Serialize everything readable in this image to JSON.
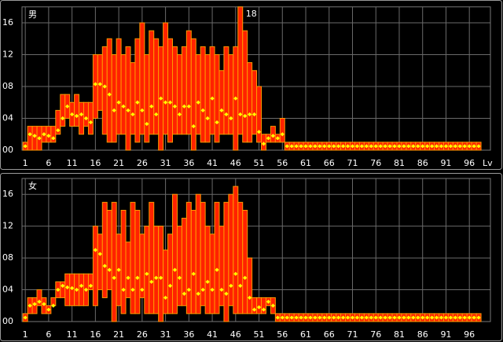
{
  "chart_data": [
    {
      "type": "range",
      "title": "男",
      "xlabel": "Lv",
      "annotation": {
        "x": 47,
        "label": "18"
      },
      "x": [
        1,
        2,
        3,
        4,
        5,
        6,
        7,
        8,
        9,
        10,
        11,
        12,
        13,
        14,
        15,
        16,
        17,
        18,
        19,
        20,
        21,
        22,
        23,
        24,
        25,
        26,
        27,
        28,
        29,
        30,
        31,
        32,
        33,
        34,
        35,
        36,
        37,
        38,
        39,
        40,
        41,
        42,
        43,
        44,
        45,
        46,
        47,
        48,
        49,
        50,
        51,
        52,
        53,
        54,
        55,
        56,
        57,
        58,
        59,
        60,
        61,
        62,
        63,
        64,
        65,
        66,
        67,
        68,
        69,
        70,
        71,
        72,
        73,
        74,
        75,
        76,
        77,
        78,
        79,
        80,
        81,
        82,
        83,
        84,
        85,
        86,
        87,
        88,
        89,
        90,
        91,
        92,
        93,
        94,
        95,
        96,
        97,
        98
      ],
      "low": [
        0,
        0,
        0,
        0,
        1,
        1,
        1,
        2,
        3,
        4,
        3,
        3,
        2,
        3,
        2,
        4,
        5,
        2,
        1,
        1,
        2,
        2,
        0,
        2,
        1,
        2,
        1,
        2,
        2,
        0,
        2,
        1,
        2,
        2,
        2,
        2,
        0,
        2,
        1,
        1,
        2,
        1,
        2,
        2,
        2,
        0,
        2,
        1,
        1,
        2,
        1,
        0,
        1,
        1,
        1,
        1,
        0,
        0,
        0,
        0,
        0,
        0,
        0,
        0,
        0,
        0,
        0,
        0,
        0,
        0,
        0,
        0,
        0,
        0,
        0,
        0,
        0,
        0,
        0,
        0,
        0,
        0,
        0,
        0,
        0,
        0,
        0,
        0,
        0,
        0,
        0,
        0,
        0,
        0,
        0,
        0,
        0,
        0
      ],
      "high": [
        1,
        3,
        3,
        3,
        3,
        3,
        3,
        5,
        7,
        7,
        6,
        7,
        6,
        6,
        6,
        12,
        12,
        13,
        14,
        12,
        14,
        12,
        13,
        11,
        14,
        16,
        12,
        15,
        14,
        13,
        16,
        14,
        13,
        12,
        13,
        15,
        14,
        12,
        13,
        12,
        13,
        12,
        10,
        13,
        12,
        13,
        18,
        15,
        11,
        10,
        8,
        2,
        2,
        3,
        2,
        4,
        1,
        1,
        1,
        1,
        1,
        1,
        1,
        1,
        1,
        1,
        1,
        1,
        1,
        1,
        1,
        1,
        1,
        1,
        1,
        1,
        1,
        1,
        1,
        1,
        1,
        1,
        1,
        1,
        1,
        1,
        1,
        1,
        1,
        1,
        1,
        1,
        1,
        1,
        1,
        1,
        1,
        1
      ],
      "mean": [
        0.5,
        2,
        1.8,
        1.5,
        2,
        1.8,
        1.5,
        2.5,
        4,
        5.5,
        4.5,
        4.3,
        4.5,
        4,
        3.5,
        8.3,
        8.3,
        8,
        7,
        5,
        6,
        5.5,
        5,
        4.5,
        6,
        5,
        3.3,
        5.5,
        4.5,
        6.5,
        6,
        6,
        5.5,
        4.5,
        5.5,
        5.5,
        3,
        6,
        5,
        4,
        6.5,
        3.5,
        5,
        4.5,
        4,
        6.5,
        4.5,
        4.3,
        4.5,
        4.5,
        2.3,
        0.8,
        1.5,
        1.8,
        1.5,
        2,
        0.5,
        0.5,
        0.5,
        0.5,
        0.5,
        0.5,
        0.5,
        0.5,
        0.5,
        0.5,
        0.5,
        0.5,
        0.5,
        0.5,
        0.5,
        0.5,
        0.5,
        0.5,
        0.5,
        0.5,
        0.5,
        0.5,
        0.5,
        0.5,
        0.5,
        0.5,
        0.5,
        0.5,
        0.5,
        0.5,
        0.5,
        0.5,
        0.5,
        0.5,
        0.5,
        0.5,
        0.5,
        0.5,
        0.5,
        0.5,
        0.5,
        0.5
      ],
      "bar_color": "#ff2200",
      "edge_color": "#ff9900",
      "mean_color": "#ffff00",
      "xlim": [
        0.3,
        99.5
      ],
      "xticks": [
        1,
        6,
        11,
        16,
        21,
        26,
        31,
        36,
        41,
        46,
        51,
        56,
        61,
        66,
        71,
        76,
        81,
        86,
        91,
        96
      ],
      "ylim": [
        0,
        18
      ],
      "yticks": [
        {
          "value": 0,
          "label": "00"
        },
        {
          "value": 4,
          "label": "04"
        },
        {
          "value": 8,
          "label": "08"
        },
        {
          "value": 12,
          "label": "12"
        },
        {
          "value": 16,
          "label": "16"
        }
      ],
      "grid": true
    },
    {
      "type": "range",
      "title": "女",
      "x": [
        1,
        2,
        3,
        4,
        5,
        6,
        7,
        8,
        9,
        10,
        11,
        12,
        13,
        14,
        15,
        16,
        17,
        18,
        19,
        20,
        21,
        22,
        23,
        24,
        25,
        26,
        27,
        28,
        29,
        30,
        31,
        32,
        33,
        34,
        35,
        36,
        37,
        38,
        39,
        40,
        41,
        42,
        43,
        44,
        45,
        46,
        47,
        48,
        49,
        50,
        51,
        52,
        53,
        54,
        55,
        56,
        57,
        58,
        59,
        60,
        61,
        62,
        63,
        64,
        65,
        66,
        67,
        68,
        69,
        70,
        71,
        72,
        73,
        74,
        75,
        76,
        77,
        78,
        79,
        80,
        81,
        82,
        83,
        84,
        85,
        86,
        87,
        88,
        89,
        90,
        91,
        92,
        93,
        94,
        95,
        96,
        97,
        98
      ],
      "low": [
        0,
        1,
        1,
        2,
        1,
        1,
        2,
        3,
        3,
        2,
        2,
        2,
        2,
        2,
        4,
        2,
        4,
        3,
        4,
        0,
        2,
        1,
        3,
        1,
        1,
        3,
        1,
        1,
        1,
        0,
        1,
        1,
        1,
        2,
        2,
        1,
        1,
        1,
        2,
        1,
        1,
        1,
        2,
        0,
        2,
        1,
        1,
        1,
        1,
        1,
        1,
        1,
        2,
        1,
        0,
        0,
        0,
        0,
        0,
        0,
        0,
        0,
        0,
        0,
        0,
        0,
        0,
        0,
        0,
        0,
        0,
        0,
        0,
        0,
        0,
        0,
        0,
        0,
        0,
        0,
        0,
        0,
        0,
        0,
        0,
        0,
        0,
        0,
        0,
        0,
        0,
        0,
        0,
        0,
        0,
        0,
        0,
        0
      ],
      "high": [
        1,
        3,
        3,
        4,
        3,
        2,
        3,
        5,
        5,
        6,
        6,
        6,
        6,
        6,
        6,
        12,
        11,
        15,
        14,
        15,
        11,
        14,
        10,
        15,
        14,
        11,
        12,
        15,
        12,
        12,
        9,
        11,
        16,
        12,
        13,
        15,
        14,
        16,
        15,
        12,
        11,
        15,
        12,
        15,
        16,
        17,
        15,
        14,
        8,
        3,
        3,
        3,
        3,
        3,
        1,
        1,
        1,
        1,
        1,
        1,
        1,
        1,
        1,
        1,
        1,
        1,
        1,
        1,
        1,
        1,
        1,
        1,
        1,
        1,
        1,
        1,
        1,
        1,
        1,
        1,
        1,
        1,
        1,
        1,
        1,
        1,
        1,
        1,
        1,
        1,
        1,
        1,
        1,
        1,
        1,
        1,
        1,
        1
      ],
      "mean": [
        0.5,
        2,
        2.2,
        2.5,
        2.2,
        1.5,
        2,
        4,
        4.5,
        4.3,
        4.2,
        4,
        4.5,
        4,
        4.5,
        9,
        8.5,
        7,
        6.5,
        5.5,
        6.5,
        4,
        5.5,
        4,
        5.5,
        4,
        6,
        5,
        5.5,
        5.5,
        3,
        4.5,
        6.5,
        5.5,
        3.5,
        4,
        6,
        3.5,
        4,
        5,
        4,
        6.5,
        4,
        3.5,
        4.5,
        6,
        4.5,
        5.5,
        3,
        1.5,
        1.8,
        1.5,
        2.5,
        2,
        0.5,
        0.5,
        0.5,
        0.5,
        0.5,
        0.5,
        0.5,
        0.5,
        0.5,
        0.5,
        0.5,
        0.5,
        0.5,
        0.5,
        0.5,
        0.5,
        0.5,
        0.5,
        0.5,
        0.5,
        0.5,
        0.5,
        0.5,
        0.5,
        0.5,
        0.5,
        0.5,
        0.5,
        0.5,
        0.5,
        0.5,
        0.5,
        0.5,
        0.5,
        0.5,
        0.5,
        0.5,
        0.5,
        0.5,
        0.5,
        0.5,
        0.5,
        0.5,
        0.5
      ],
      "bar_color": "#ff2200",
      "edge_color": "#ff9900",
      "mean_color": "#ffff00",
      "xlim": [
        0.3,
        99.5
      ],
      "xticks": [
        1,
        6,
        11,
        16,
        21,
        26,
        31,
        36,
        41,
        46,
        51,
        56,
        61,
        66,
        71,
        76,
        81,
        86,
        91,
        96
      ],
      "ylim": [
        0,
        18
      ],
      "yticks": [
        {
          "value": 0,
          "label": "00"
        },
        {
          "value": 4,
          "label": "04"
        },
        {
          "value": 8,
          "label": "08"
        },
        {
          "value": 12,
          "label": "12"
        },
        {
          "value": 16,
          "label": "16"
        }
      ],
      "grid": true
    }
  ]
}
